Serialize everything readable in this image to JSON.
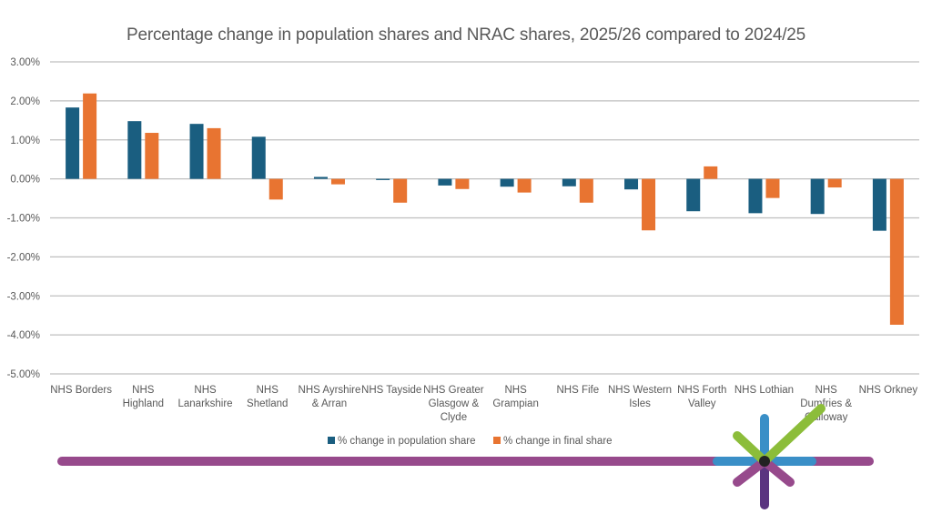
{
  "chart_data": {
    "type": "bar",
    "title": "Percentage change in population shares and NRAC shares, 2025/26 compared to 2024/25",
    "xlabel": "",
    "ylabel": "",
    "ylim": [
      -5.0,
      3.0
    ],
    "yticks": [
      3.0,
      2.0,
      1.0,
      0.0,
      -1.0,
      -2.0,
      -3.0,
      -4.0,
      -5.0
    ],
    "ytick_labels": [
      "3.00%",
      "2.00%",
      "1.00%",
      "0.00%",
      "-1.00%",
      "-2.00%",
      "-3.00%",
      "-4.00%",
      "-5.00%"
    ],
    "grid": true,
    "legend_position": "bottom",
    "categories": [
      [
        "NHS Borders"
      ],
      [
        "NHS",
        "Highland"
      ],
      [
        "NHS",
        "Lanarkshire"
      ],
      [
        "NHS",
        "Shetland"
      ],
      [
        "NHS Ayrshire",
        "& Arran"
      ],
      [
        "NHS Tayside"
      ],
      [
        "NHS Greater",
        "Glasgow &",
        "Clyde"
      ],
      [
        "NHS",
        "Grampian"
      ],
      [
        "NHS Fife"
      ],
      [
        "NHS Western",
        "Isles"
      ],
      [
        "NHS Forth",
        "Valley"
      ],
      [
        "NHS Lothian"
      ],
      [
        "NHS",
        "Dumfries &",
        "Galloway"
      ],
      [
        "NHS Orkney"
      ]
    ],
    "series": [
      {
        "name": "% change in population share",
        "color": "#1a5e80",
        "values": [
          1.83,
          1.48,
          1.41,
          1.08,
          0.05,
          -0.03,
          -0.17,
          -0.2,
          -0.19,
          -0.27,
          -0.83,
          -0.88,
          -0.9,
          -1.33
        ]
      },
      {
        "name": "% change in final share",
        "color": "#e87431",
        "values": [
          2.19,
          1.18,
          1.3,
          -0.53,
          -0.14,
          -0.61,
          -0.26,
          -0.35,
          -0.61,
          -1.32,
          0.32,
          -0.49,
          -0.22,
          -3.74
        ]
      }
    ]
  },
  "decoration": {
    "line_color": "#974a8c",
    "star_colors": {
      "blue": "#3a8fc7",
      "green": "#8cbd3a",
      "purple": "#974a8c",
      "dark_purple": "#5a3480",
      "center": "#222222"
    }
  }
}
